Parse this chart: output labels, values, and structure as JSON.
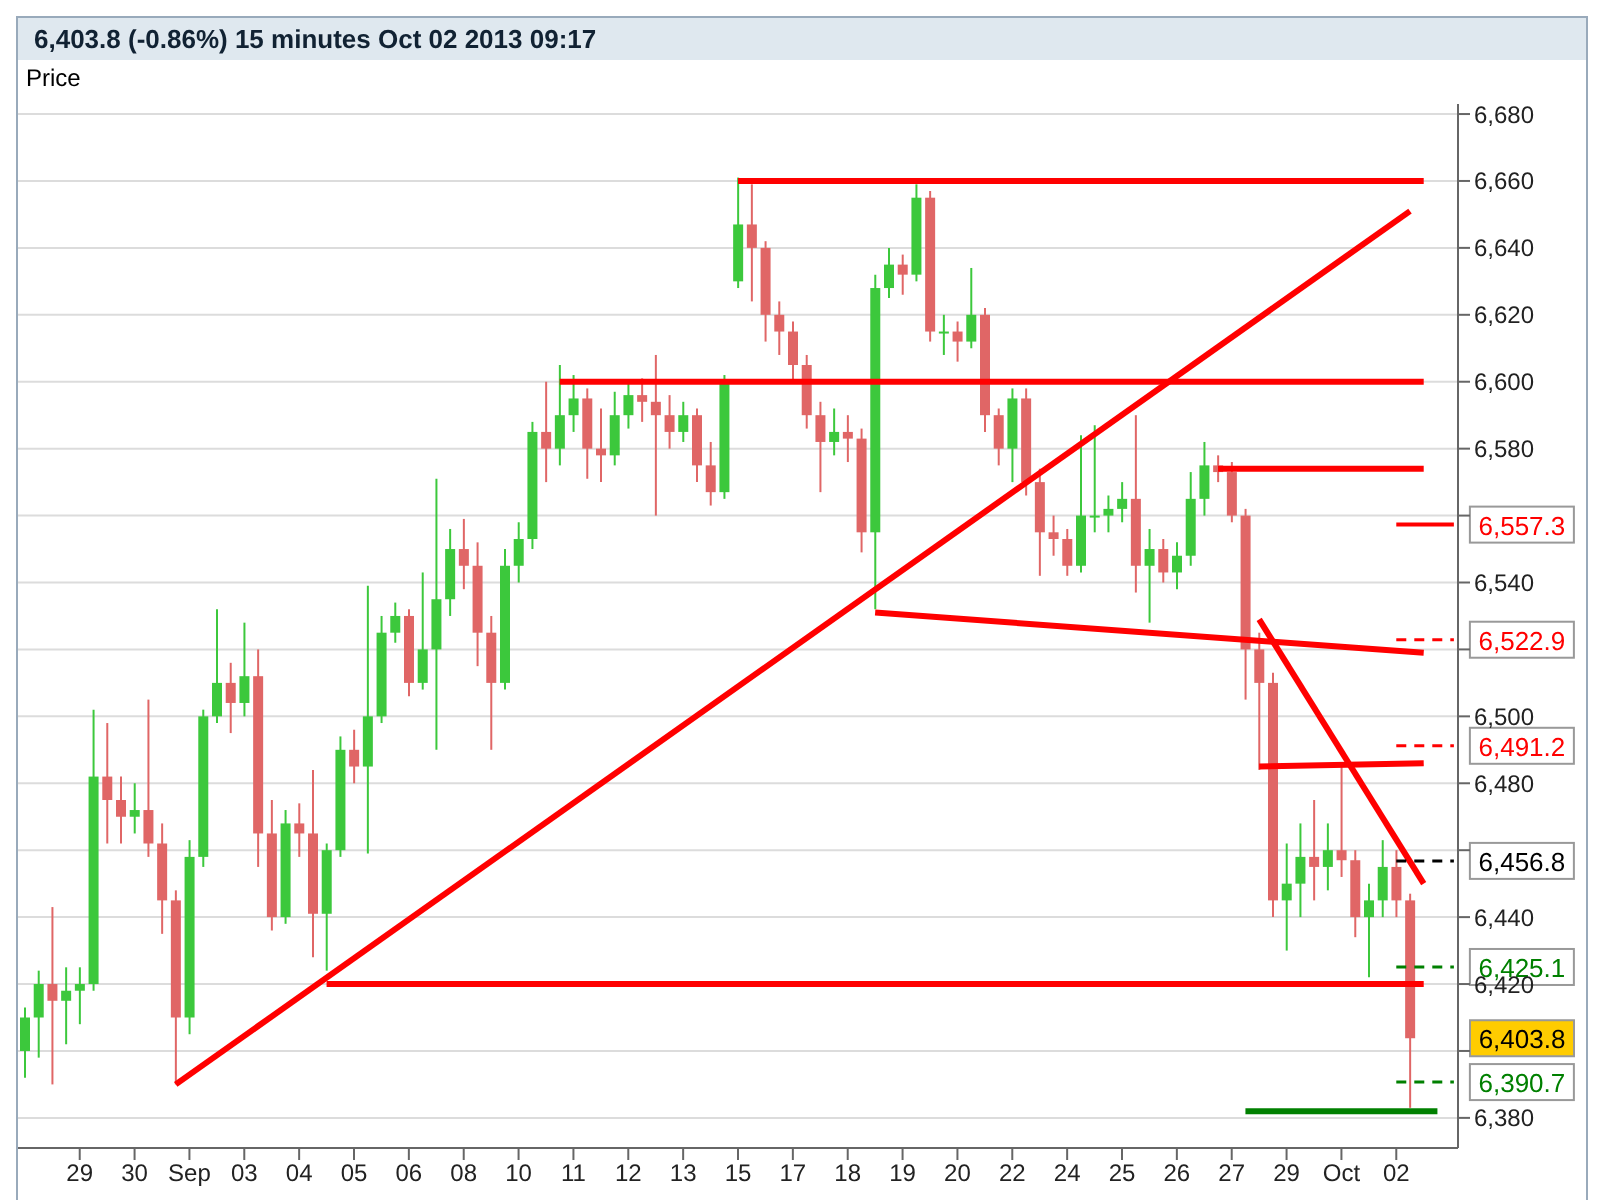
{
  "chart_data": {
    "type": "candlestick",
    "title": "6,403.8 (-0.86%)   15 minutes   Oct 02 2013 09:17",
    "ylabel": "Price",
    "categories": [
      null,
      null,
      null,
      null,
      "29",
      null,
      null,
      null,
      "30",
      null,
      null,
      null,
      "Sep",
      null,
      null,
      null,
      "03",
      null,
      null,
      null,
      "04",
      null,
      null,
      null,
      "05",
      null,
      null,
      null,
      "06",
      null,
      null,
      null,
      "08",
      null,
      null,
      null,
      "10",
      null,
      null,
      null,
      "11",
      null,
      null,
      null,
      "12",
      null,
      null,
      null,
      "13",
      null,
      null,
      null,
      "15",
      null,
      null,
      null,
      "17",
      null,
      null,
      null,
      "18",
      null,
      null,
      null,
      "19",
      null,
      null,
      null,
      "20",
      null,
      null,
      null,
      "22",
      null,
      null,
      null,
      "24",
      null,
      null,
      null,
      "25",
      null,
      null,
      null,
      "26",
      null,
      null,
      null,
      "27",
      null,
      null,
      null,
      "29",
      null,
      null,
      null,
      "Oct",
      null,
      null,
      null,
      "02",
      null,
      null,
      null,
      null
    ],
    "ohlc": [
      [
        6400,
        6413,
        6392,
        6410
      ],
      [
        6410,
        6424,
        6398,
        6420
      ],
      [
        6420,
        6443,
        6390,
        6415
      ],
      [
        6415,
        6425,
        6402,
        6418
      ],
      [
        6418,
        6425,
        6408,
        6420
      ],
      [
        6420,
        6502,
        6418,
        6482
      ],
      [
        6482,
        6498,
        6462,
        6475
      ],
      [
        6475,
        6482,
        6462,
        6470
      ],
      [
        6470,
        6480,
        6465,
        6472
      ],
      [
        6472,
        6505,
        6458,
        6462
      ],
      [
        6462,
        6468,
        6435,
        6445
      ],
      [
        6445,
        6448,
        6390,
        6410
      ],
      [
        6410,
        6463,
        6405,
        6458
      ],
      [
        6458,
        6502,
        6455,
        6500
      ],
      [
        6500,
        6532,
        6498,
        6510
      ],
      [
        6510,
        6516,
        6495,
        6504
      ],
      [
        6504,
        6528,
        6500,
        6512
      ],
      [
        6512,
        6520,
        6455,
        6465
      ],
      [
        6465,
        6475,
        6436,
        6440
      ],
      [
        6440,
        6472,
        6438,
        6468
      ],
      [
        6468,
        6474,
        6458,
        6465
      ],
      [
        6465,
        6484,
        6428,
        6441
      ],
      [
        6441,
        6462,
        6424,
        6460
      ],
      [
        6460,
        6494,
        6458,
        6490
      ],
      [
        6490,
        6496,
        6480,
        6485
      ],
      [
        6485,
        6539,
        6459,
        6500
      ],
      [
        6500,
        6530,
        6498,
        6525
      ],
      [
        6525,
        6534,
        6522,
        6530
      ],
      [
        6530,
        6532,
        6506,
        6510
      ],
      [
        6510,
        6543,
        6508,
        6520
      ],
      [
        6520,
        6571,
        6490,
        6535
      ],
      [
        6535,
        6556,
        6530,
        6550
      ],
      [
        6550,
        6559,
        6538,
        6545
      ],
      [
        6545,
        6552,
        6515,
        6525
      ],
      [
        6525,
        6530,
        6490,
        6510
      ],
      [
        6510,
        6550,
        6508,
        6545
      ],
      [
        6545,
        6558,
        6540,
        6553
      ],
      [
        6553,
        6588,
        6550,
        6585
      ],
      [
        6585,
        6600,
        6570,
        6580
      ],
      [
        6580,
        6605,
        6575,
        6590
      ],
      [
        6590,
        6602,
        6585,
        6595
      ],
      [
        6595,
        6598,
        6571,
        6580
      ],
      [
        6580,
        6592,
        6570,
        6578
      ],
      [
        6578,
        6597,
        6575,
        6590
      ],
      [
        6590,
        6600,
        6586,
        6596
      ],
      [
        6596,
        6601,
        6588,
        6594
      ],
      [
        6594,
        6608,
        6560,
        6590
      ],
      [
        6590,
        6596,
        6580,
        6585
      ],
      [
        6585,
        6594,
        6582,
        6590
      ],
      [
        6590,
        6592,
        6570,
        6575
      ],
      [
        6575,
        6582,
        6563,
        6567
      ],
      [
        6567,
        6602,
        6565,
        6600
      ],
      [
        6630,
        6661,
        6628,
        6647
      ],
      [
        6647,
        6659,
        6624,
        6640
      ],
      [
        6640,
        6642,
        6612,
        6620
      ],
      [
        6620,
        6624,
        6608,
        6615
      ],
      [
        6615,
        6618,
        6600,
        6605
      ],
      [
        6605,
        6608,
        6586,
        6590
      ],
      [
        6590,
        6594,
        6567,
        6582
      ],
      [
        6582,
        6592,
        6578,
        6585
      ],
      [
        6585,
        6590,
        6576,
        6583
      ],
      [
        6583,
        6586,
        6549,
        6555
      ],
      [
        6555,
        6632,
        6532,
        6628
      ],
      [
        6628,
        6640,
        6625,
        6635
      ],
      [
        6635,
        6638,
        6626,
        6632
      ],
      [
        6632,
        6659,
        6630,
        6655
      ],
      [
        6655,
        6657,
        6612,
        6615
      ],
      [
        6615,
        6620,
        6608,
        6615
      ],
      [
        6615,
        6618,
        6606,
        6612
      ],
      [
        6612,
        6634,
        6610,
        6620
      ],
      [
        6620,
        6622,
        6585,
        6590
      ],
      [
        6590,
        6592,
        6575,
        6580
      ],
      [
        6580,
        6598,
        6570,
        6595
      ],
      [
        6595,
        6598,
        6566,
        6570
      ],
      [
        6570,
        6574,
        6542,
        6555
      ],
      [
        6555,
        6560,
        6548,
        6553
      ],
      [
        6553,
        6556,
        6542,
        6545
      ],
      [
        6545,
        6584,
        6543,
        6560
      ],
      [
        6560,
        6587,
        6555,
        6560
      ],
      [
        6560,
        6566,
        6555,
        6562
      ],
      [
        6562,
        6570,
        6558,
        6565
      ],
      [
        6565,
        6590,
        6537,
        6545
      ],
      [
        6545,
        6556,
        6528,
        6550
      ],
      [
        6550,
        6553,
        6540,
        6543
      ],
      [
        6543,
        6552,
        6538,
        6548
      ],
      [
        6548,
        6573,
        6545,
        6565
      ],
      [
        6565,
        6582,
        6560,
        6575
      ],
      [
        6575,
        6578,
        6570,
        6573
      ],
      [
        6573,
        6576,
        6558,
        6560
      ],
      [
        6560,
        6562,
        6505,
        6520
      ],
      [
        6520,
        6525,
        6484,
        6510
      ],
      [
        6510,
        6513,
        6440,
        6445
      ],
      [
        6445,
        6462,
        6430,
        6450
      ],
      [
        6450,
        6468,
        6440,
        6458
      ],
      [
        6458,
        6475,
        6445,
        6455
      ],
      [
        6455,
        6468,
        6448,
        6460
      ],
      [
        6460,
        6486,
        6452,
        6457
      ],
      [
        6457,
        6460,
        6434,
        6440
      ],
      [
        6440,
        6450,
        6422,
        6445
      ],
      [
        6445,
        6463,
        6440,
        6455
      ],
      [
        6455,
        6460,
        6440,
        6445
      ],
      [
        6445,
        6447,
        6383,
        6403.8
      ],
      null,
      null,
      null
    ],
    "series": [
      {
        "type": "line",
        "color": "#ff0000",
        "values": [
          null,
          null,
          null,
          null,
          null,
          null,
          null,
          null,
          null,
          null,
          null,
          6390,
          null,
          null,
          null,
          null,
          null,
          null,
          null,
          null,
          null,
          null,
          null,
          null,
          null,
          null,
          null,
          null,
          null,
          null,
          null,
          null,
          null,
          null,
          null,
          null,
          null,
          null,
          null,
          null,
          null,
          null,
          null,
          null,
          null,
          null,
          null,
          null,
          null,
          null,
          null,
          null,
          null,
          null,
          null,
          null,
          null,
          null,
          null,
          null,
          null,
          null,
          null,
          null,
          null,
          null,
          null,
          null,
          null,
          null,
          null,
          null,
          null,
          null,
          null,
          null,
          null,
          null,
          null,
          null,
          null,
          null,
          null,
          null,
          null,
          null,
          null,
          null,
          null,
          null,
          null,
          null,
          null,
          null,
          null,
          null,
          null,
          null,
          null,
          null,
          null,
          6651,
          null,
          null,
          null
        ]
      },
      {
        "type": "line",
        "color": "#ff0000",
        "values": [
          null,
          null,
          null,
          null,
          null,
          null,
          null,
          null,
          null,
          null,
          null,
          null,
          null,
          null,
          null,
          null,
          null,
          null,
          null,
          null,
          null,
          null,
          null,
          null,
          null,
          null,
          null,
          null,
          null,
          null,
          null,
          null,
          null,
          null,
          null,
          null,
          null,
          null,
          null,
          null,
          null,
          null,
          null,
          null,
          null,
          null,
          null,
          null,
          null,
          null,
          null,
          null,
          6660,
          null,
          null,
          null,
          null,
          null,
          null,
          null,
          null,
          null,
          null,
          null,
          null,
          null,
          null,
          null,
          null,
          null,
          null,
          null,
          null,
          null,
          null,
          null,
          null,
          null,
          null,
          null,
          null,
          null,
          null,
          null,
          null,
          null,
          null,
          null,
          null,
          null,
          null,
          null,
          null,
          null,
          null,
          null,
          null,
          null,
          null,
          null,
          null,
          null,
          6660,
          null,
          null
        ]
      },
      {
        "type": "line",
        "color": "#ff0000",
        "values": [
          null,
          null,
          null,
          null,
          null,
          null,
          null,
          null,
          null,
          null,
          null,
          null,
          null,
          null,
          null,
          null,
          null,
          null,
          null,
          null,
          null,
          null,
          null,
          null,
          null,
          null,
          null,
          null,
          null,
          null,
          null,
          null,
          null,
          null,
          null,
          null,
          null,
          null,
          null,
          6600,
          null,
          null,
          null,
          null,
          null,
          null,
          null,
          null,
          null,
          null,
          null,
          null,
          null,
          null,
          null,
          null,
          null,
          null,
          null,
          null,
          null,
          null,
          null,
          null,
          null,
          null,
          null,
          null,
          null,
          null,
          null,
          null,
          null,
          null,
          null,
          null,
          null,
          null,
          null,
          null,
          null,
          null,
          null,
          null,
          null,
          null,
          null,
          null,
          null,
          null,
          null,
          null,
          null,
          null,
          null,
          null,
          null,
          null,
          null,
          null,
          null,
          null,
          6600,
          null,
          null
        ]
      },
      {
        "type": "line",
        "color": "#ff0000",
        "values": [
          null,
          null,
          null,
          null,
          null,
          null,
          null,
          null,
          null,
          null,
          null,
          null,
          null,
          null,
          null,
          null,
          null,
          null,
          null,
          null,
          null,
          null,
          6420,
          null,
          null,
          null,
          null,
          null,
          null,
          null,
          null,
          null,
          null,
          null,
          null,
          null,
          null,
          null,
          null,
          null,
          null,
          null,
          null,
          null,
          null,
          null,
          null,
          null,
          null,
          null,
          null,
          null,
          null,
          null,
          null,
          null,
          null,
          null,
          null,
          null,
          null,
          null,
          null,
          null,
          null,
          null,
          null,
          null,
          null,
          null,
          null,
          null,
          null,
          null,
          null,
          null,
          null,
          null,
          null,
          null,
          null,
          null,
          null,
          null,
          null,
          null,
          null,
          null,
          null,
          null,
          null,
          null,
          null,
          null,
          null,
          null,
          null,
          null,
          null,
          null,
          null,
          null,
          6420,
          null,
          null
        ]
      },
      {
        "type": "line",
        "color": "#ff0000",
        "values": [
          null,
          null,
          null,
          null,
          null,
          null,
          null,
          null,
          null,
          null,
          null,
          null,
          null,
          null,
          null,
          null,
          null,
          null,
          null,
          null,
          null,
          null,
          null,
          null,
          null,
          null,
          null,
          null,
          null,
          null,
          null,
          null,
          null,
          null,
          null,
          null,
          null,
          null,
          null,
          null,
          null,
          null,
          null,
          null,
          null,
          null,
          null,
          null,
          null,
          null,
          null,
          null,
          null,
          null,
          null,
          null,
          null,
          null,
          null,
          null,
          null,
          null,
          6531,
          null,
          null,
          null,
          null,
          null,
          null,
          null,
          null,
          null,
          null,
          null,
          null,
          null,
          null,
          null,
          null,
          null,
          null,
          null,
          null,
          null,
          null,
          null,
          null,
          null,
          null,
          null,
          null,
          null,
          null,
          null,
          null,
          null,
          null,
          null,
          null,
          null,
          null,
          null,
          6519,
          null,
          null
        ]
      },
      {
        "type": "line",
        "color": "#ff0000",
        "values": [
          null,
          null,
          null,
          null,
          null,
          null,
          null,
          null,
          null,
          null,
          null,
          null,
          null,
          null,
          null,
          null,
          null,
          null,
          null,
          null,
          null,
          null,
          null,
          null,
          null,
          null,
          null,
          null,
          null,
          null,
          null,
          null,
          null,
          null,
          null,
          null,
          null,
          null,
          null,
          null,
          null,
          null,
          null,
          null,
          null,
          null,
          null,
          null,
          null,
          null,
          null,
          null,
          null,
          null,
          null,
          null,
          null,
          null,
          null,
          null,
          null,
          null,
          null,
          null,
          null,
          null,
          null,
          null,
          null,
          null,
          null,
          null,
          null,
          null,
          null,
          null,
          null,
          null,
          null,
          null,
          null,
          null,
          null,
          null,
          null,
          null,
          null,
          6574,
          null,
          null,
          null,
          null,
          null,
          null,
          null,
          null,
          null,
          null,
          null,
          null,
          null,
          null,
          6574,
          null,
          null
        ]
      },
      {
        "type": "line",
        "color": "#ff0000",
        "values": [
          null,
          null,
          null,
          null,
          null,
          null,
          null,
          null,
          null,
          null,
          null,
          null,
          null,
          null,
          null,
          null,
          null,
          null,
          null,
          null,
          null,
          null,
          null,
          null,
          null,
          null,
          null,
          null,
          null,
          null,
          null,
          null,
          null,
          null,
          null,
          null,
          null,
          null,
          null,
          null,
          null,
          null,
          null,
          null,
          null,
          null,
          null,
          null,
          null,
          null,
          null,
          null,
          null,
          null,
          null,
          null,
          null,
          null,
          null,
          null,
          null,
          null,
          null,
          null,
          null,
          null,
          null,
          null,
          null,
          null,
          null,
          null,
          null,
          null,
          null,
          null,
          null,
          null,
          null,
          null,
          null,
          null,
          null,
          null,
          null,
          null,
          null,
          null,
          null,
          null,
          6529,
          null,
          null,
          null,
          null,
          null,
          null,
          null,
          null,
          null,
          null,
          null,
          6450,
          null,
          null
        ]
      },
      {
        "type": "line",
        "color": "#ff0000",
        "values": [
          null,
          null,
          null,
          null,
          null,
          null,
          null,
          null,
          null,
          null,
          null,
          null,
          null,
          null,
          null,
          null,
          null,
          null,
          null,
          null,
          null,
          null,
          null,
          null,
          null,
          null,
          null,
          null,
          null,
          null,
          null,
          null,
          null,
          null,
          null,
          null,
          null,
          null,
          null,
          null,
          null,
          null,
          null,
          null,
          null,
          null,
          null,
          null,
          null,
          null,
          null,
          null,
          null,
          null,
          null,
          null,
          null,
          null,
          null,
          null,
          null,
          null,
          null,
          null,
          null,
          null,
          null,
          null,
          null,
          null,
          null,
          null,
          null,
          null,
          null,
          null,
          null,
          null,
          null,
          null,
          null,
          null,
          null,
          null,
          null,
          null,
          null,
          null,
          null,
          null,
          6485,
          null,
          null,
          null,
          null,
          null,
          null,
          null,
          null,
          null,
          null,
          null,
          6486,
          null,
          null
        ]
      },
      {
        "type": "line",
        "color": "#008000",
        "values": [
          null,
          null,
          null,
          null,
          null,
          null,
          null,
          null,
          null,
          null,
          null,
          null,
          null,
          null,
          null,
          null,
          null,
          null,
          null,
          null,
          null,
          null,
          null,
          null,
          null,
          null,
          null,
          null,
          null,
          null,
          null,
          null,
          null,
          null,
          null,
          null,
          null,
          null,
          null,
          null,
          null,
          null,
          null,
          null,
          null,
          null,
          null,
          null,
          null,
          null,
          null,
          null,
          null,
          null,
          null,
          null,
          null,
          null,
          null,
          null,
          null,
          null,
          null,
          null,
          null,
          null,
          null,
          null,
          null,
          null,
          null,
          null,
          null,
          null,
          null,
          null,
          null,
          null,
          null,
          null,
          null,
          null,
          null,
          null,
          null,
          null,
          null,
          null,
          null,
          6382,
          null,
          null,
          null,
          null,
          null,
          null,
          null,
          null,
          null,
          null,
          null,
          null,
          null,
          6382,
          null
        ]
      }
    ],
    "ref_lines": [
      {
        "axis": "y",
        "value": 6557.3,
        "label": "6,557.3",
        "color": "#ff0000",
        "line_style": "solid"
      },
      {
        "axis": "y",
        "value": 6522.9,
        "label": "6,522.9",
        "color": "#ff0000",
        "line_style": "dashed"
      },
      {
        "axis": "y",
        "value": 6491.2,
        "label": "6,491.2",
        "color": "#ff0000",
        "line_style": "dashed"
      },
      {
        "axis": "y",
        "value": 6456.8,
        "label": "6,456.8",
        "color": "#000000",
        "line_style": "dashed"
      },
      {
        "axis": "y",
        "value": 6425.1,
        "label": "6,425.1",
        "color": "#008000",
        "line_style": "dashed"
      },
      {
        "axis": "y",
        "value": 6390.7,
        "label": "6,390.7",
        "color": "#008000",
        "line_style": "dashed"
      }
    ],
    "annotations": [
      "6,403.8"
    ],
    "ylim": [
      6371,
      6683
    ],
    "yticks": [
      {
        "value": 6380,
        "label": "6,380"
      },
      {
        "value": 6400,
        "label": null
      },
      {
        "value": 6420,
        "label": "6,420"
      },
      {
        "value": 6440,
        "label": "6,440"
      },
      {
        "value": 6460,
        "label": null
      },
      {
        "value": 6480,
        "label": "6,480"
      },
      {
        "value": 6500,
        "label": "6,500"
      },
      {
        "value": 6520,
        "label": null
      },
      {
        "value": 6540,
        "label": "6,540"
      },
      {
        "value": 6560,
        "label": null
      },
      {
        "value": 6580,
        "label": "6,580"
      },
      {
        "value": 6600,
        "label": "6,600"
      },
      {
        "value": 6620,
        "label": "6,620"
      },
      {
        "value": 6640,
        "label": "6,640"
      },
      {
        "value": 6660,
        "label": "6,660"
      },
      {
        "value": 6680,
        "label": "6,680"
      }
    ],
    "grid": "y"
  }
}
